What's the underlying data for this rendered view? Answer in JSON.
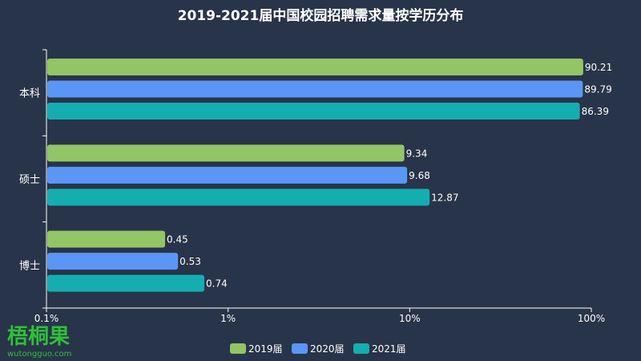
{
  "chart_data": {
    "type": "bar",
    "orientation": "horizontal",
    "title": "2019-2021届中国校园招聘需求量按学历分布",
    "categories": [
      "本科",
      "硕士",
      "博士"
    ],
    "series": [
      {
        "name": "2019届",
        "color": "#92c565",
        "values": [
          90.21,
          9.34,
          0.45
        ]
      },
      {
        "name": "2020届",
        "color": "#5a96f5",
        "values": [
          89.79,
          9.68,
          0.53
        ]
      },
      {
        "name": "2021届",
        "color": "#15aeb0",
        "values": [
          86.39,
          12.87,
          0.74
        ]
      }
    ],
    "x_scale": "log",
    "xlim": [
      0.1,
      100
    ],
    "x_ticks": [
      0.1,
      1,
      10,
      100
    ],
    "x_tick_labels": [
      "0.1%",
      "1%",
      "10%",
      "100%"
    ],
    "grid": false,
    "legend_position": "bottom"
  },
  "watermark": {
    "text": "梧桐果",
    "site": "wutongguo.com"
  }
}
